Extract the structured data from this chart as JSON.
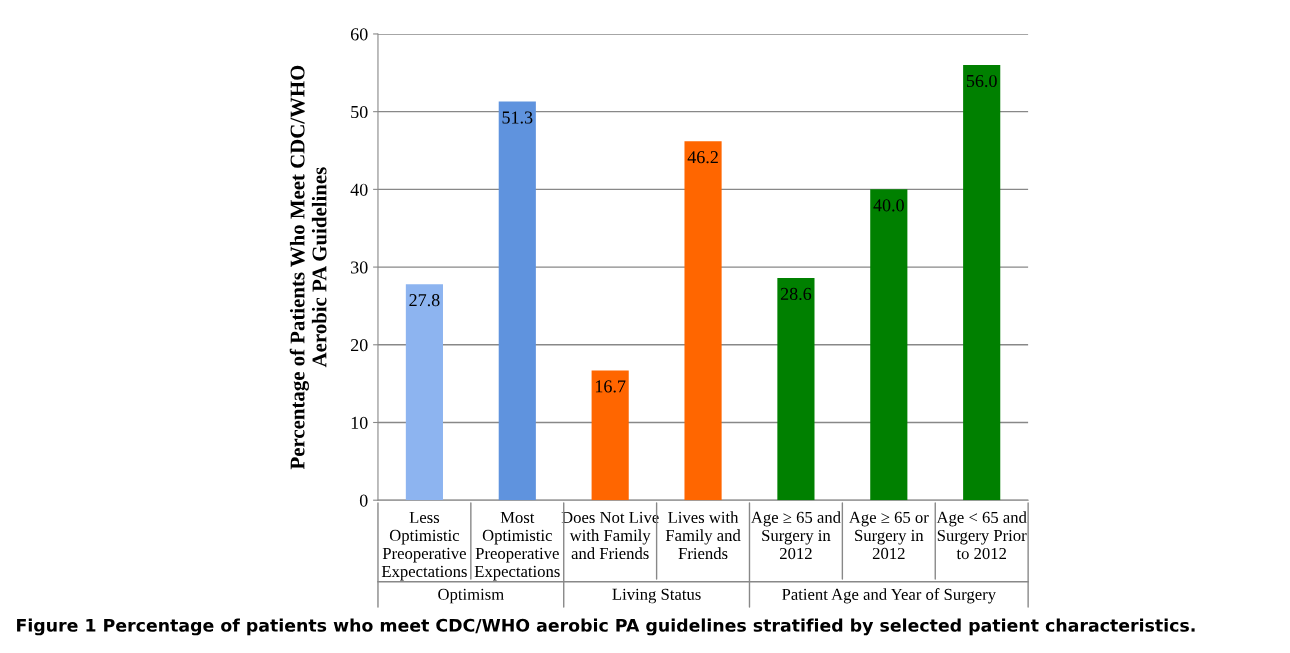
{
  "chart_data": {
    "type": "bar",
    "title": "Figure 1 Percentage of patients who meet CDC/WHO aerobic PA guidelines stratified by selected patient characteristics.",
    "ylabel": "Percentage of Patients Who Meet CDC/WHO\nAerobic PA Guidelines",
    "categories": [
      "Less\nOptimistic\nPreoperative\nExpectations",
      "Most\nOptimistic\nPreoperative\nExpectations",
      "Does Not Live\nwith Family\nand Friends",
      "Lives with\nFamily and\nFriends",
      "Age ≥ 65 and\nSurgery in\n2012",
      "Age ≥ 65 or\nSurgery in\n2012",
      "Age < 65 and\nSurgery Prior\nto 2012"
    ],
    "values": [
      27.8,
      51.3,
      16.7,
      46.2,
      28.6,
      40.0,
      56.0
    ],
    "colors": [
      "#8db4f0",
      "#5f93de",
      "#ff6600",
      "#ff6600",
      "#008000",
      "#008000",
      "#008000"
    ],
    "value_labels": [
      "27.8",
      "51.3",
      "16.7",
      "46.2",
      "28.6",
      "40.0",
      "56.0"
    ],
    "annotations": [
      "Optimism",
      "Living Status",
      "Patient Age and Year of Surgery"
    ],
    "ylim": [
      0,
      60
    ],
    "yticks": [
      0,
      10,
      20,
      30,
      40,
      50,
      60
    ],
    "grid": "y"
  }
}
